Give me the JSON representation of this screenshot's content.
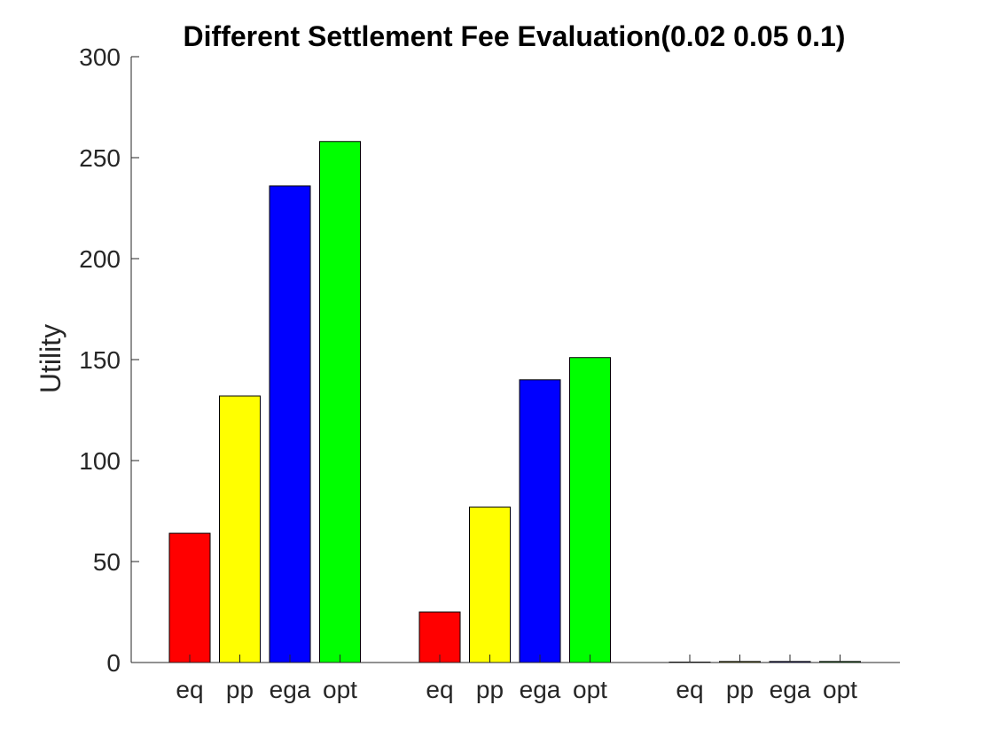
{
  "chart_data": {
    "type": "bar",
    "title": "Different Settlement Fee Evaluation(0.02 0.05 0.1)",
    "xlabel": "",
    "ylabel": "Utility",
    "ylim": [
      0,
      300
    ],
    "yticks": [
      0,
      50,
      100,
      150,
      200,
      250,
      300
    ],
    "grid": false,
    "categories": [
      "eq",
      "pp",
      "ega",
      "opt"
    ],
    "groups": [
      {
        "values": [
          64,
          132,
          236,
          258
        ]
      },
      {
        "values": [
          25,
          77,
          140,
          151
        ]
      },
      {
        "values": [
          0.2,
          0.5,
          0.5,
          0.5
        ]
      }
    ],
    "colors": [
      "#ff0000",
      "#ffff00",
      "#0000ff",
      "#00ff00"
    ]
  }
}
